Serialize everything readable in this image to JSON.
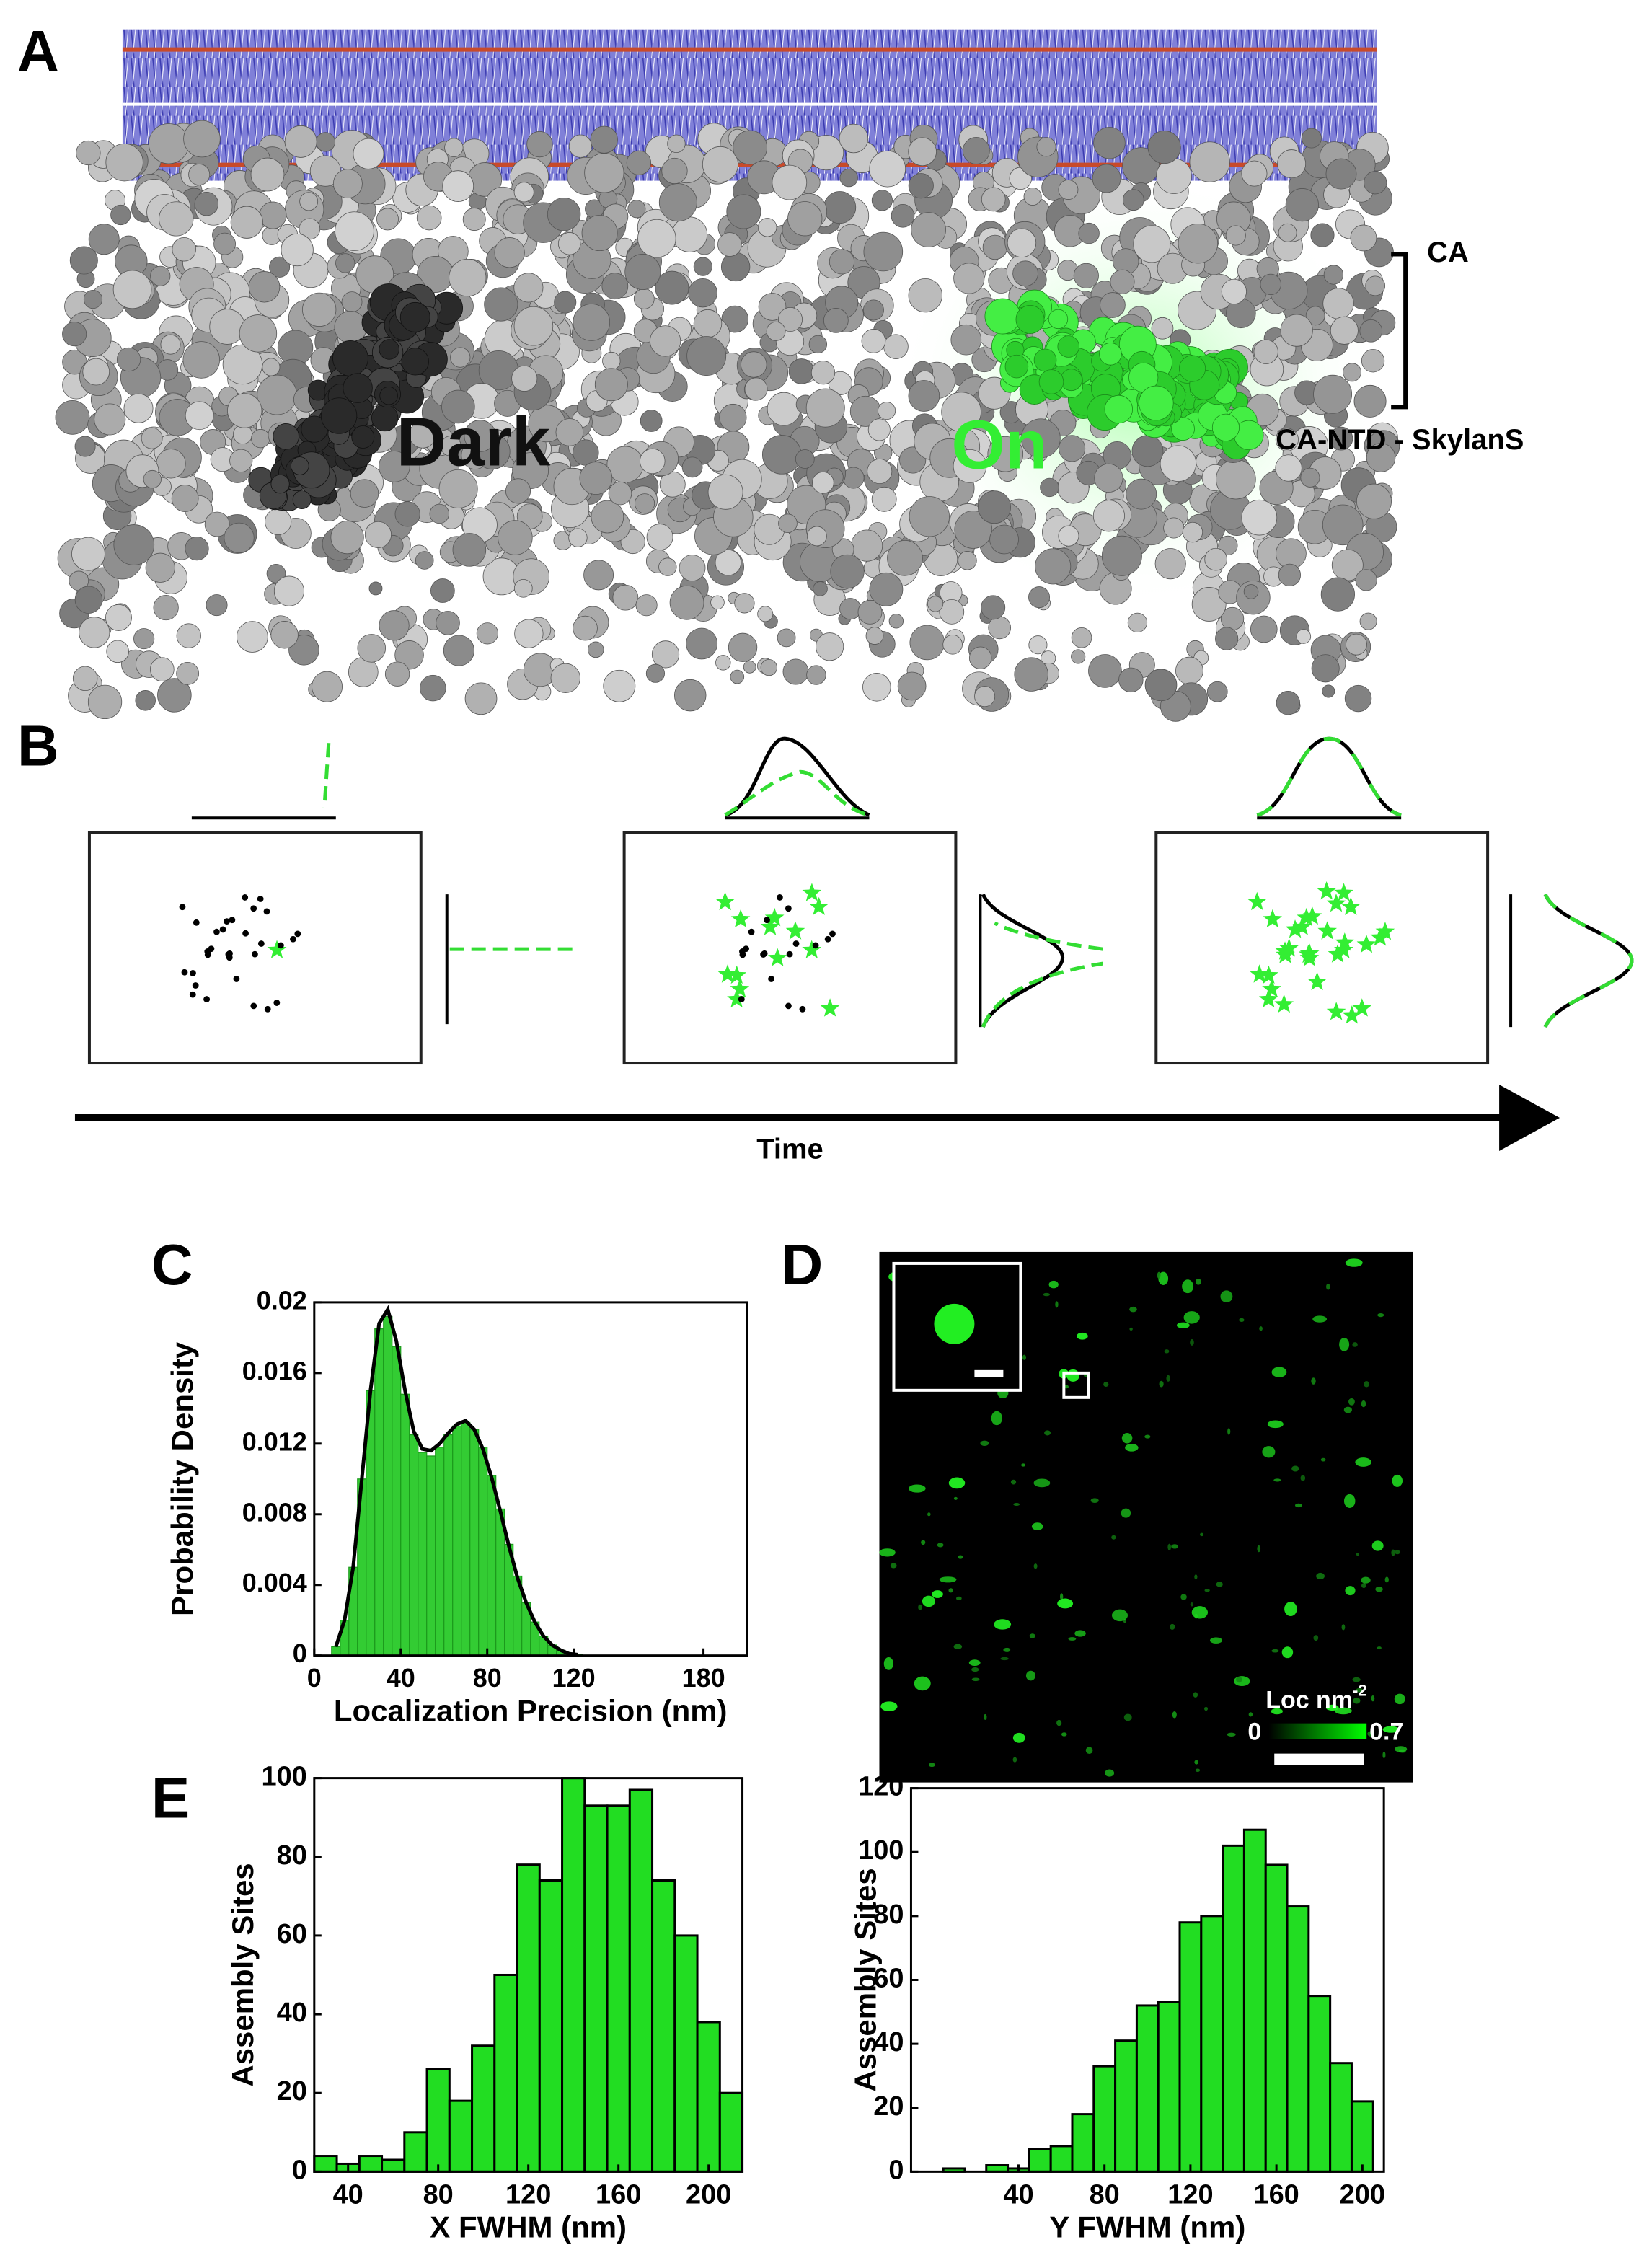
{
  "panels": {
    "labels": [
      "A",
      "B",
      "C",
      "D",
      "E"
    ]
  },
  "panel_a": {
    "dark": "Dark",
    "on": "On",
    "ca": "CA",
    "ca_ntd": "CA-NTD - SkylanS"
  },
  "panel_b": {
    "time": "Time"
  },
  "panel_d": {
    "colorbar_label": "Loc nm",
    "colorbar_exponent": "-2",
    "colorbar_min": "0",
    "colorbar_max": "0.7"
  },
  "chart_data": [
    {
      "type": "histogram",
      "xlabel": "Localization Precision (nm)",
      "ylabel": "Probability Density",
      "color": "#33cc33",
      "bins": [
        8,
        12,
        16,
        20,
        24,
        28,
        32,
        36,
        40,
        44,
        48,
        52,
        56,
        60,
        64,
        68,
        72,
        76,
        80,
        84,
        88,
        92,
        96,
        100,
        104,
        108,
        112,
        116,
        120,
        124
      ],
      "values": [
        0.0005,
        0.002,
        0.005,
        0.01,
        0.015,
        0.0185,
        0.0192,
        0.0175,
        0.0148,
        0.0125,
        0.0115,
        0.0113,
        0.0118,
        0.0125,
        0.013,
        0.0132,
        0.0128,
        0.0118,
        0.0102,
        0.0083,
        0.0063,
        0.0045,
        0.003,
        0.0019,
        0.0011,
        0.0006,
        0.0003,
        0.0001,
        5e-05
      ],
      "fit": {
        "color": "#000000",
        "x": [
          10,
          14,
          18,
          22,
          26,
          30,
          34,
          38,
          42,
          46,
          50,
          54,
          58,
          62,
          66,
          70,
          74,
          78,
          82,
          86,
          90,
          94,
          98,
          102,
          106,
          110,
          114,
          118,
          122
        ],
        "values": [
          0.0005,
          0.002,
          0.005,
          0.01,
          0.015,
          0.0188,
          0.0196,
          0.0178,
          0.015,
          0.0127,
          0.0117,
          0.0116,
          0.012,
          0.0126,
          0.0131,
          0.0133,
          0.0128,
          0.0117,
          0.0101,
          0.0082,
          0.0062,
          0.0044,
          0.003,
          0.0019,
          0.0011,
          0.0006,
          0.0003,
          0.0001,
          5e-05
        ]
      },
      "xlim": [
        0,
        200
      ],
      "xticks": [
        0,
        40,
        80,
        120,
        180
      ],
      "ylim": [
        0,
        0.02
      ],
      "yticks": [
        0,
        0.004,
        0.008,
        0.012,
        0.016,
        0.02
      ]
    },
    {
      "type": "histogram",
      "xlabel": "X FWHM (nm)",
      "ylabel": "Assembly Sites",
      "color": "#22dd22",
      "bins": [
        25,
        35,
        45,
        55,
        65,
        75,
        85,
        95,
        105,
        115,
        125,
        135,
        145,
        155,
        165,
        175,
        185,
        195,
        205,
        215
      ],
      "values": [
        4,
        2,
        4,
        3,
        10,
        26,
        18,
        32,
        50,
        78,
        74,
        100,
        93,
        93,
        97,
        74,
        60,
        38,
        20
      ],
      "xlim": [
        25,
        215
      ],
      "xticks": [
        40,
        80,
        120,
        160,
        200
      ],
      "ylim": [
        0,
        100
      ],
      "yticks": [
        0,
        20,
        40,
        60,
        80,
        100
      ]
    },
    {
      "type": "histogram",
      "xlabel": "Y FWHM (nm)",
      "ylabel": "Assembly Sites",
      "color": "#22dd22",
      "bins": [
        5,
        15,
        25,
        35,
        45,
        55,
        65,
        75,
        85,
        95,
        105,
        115,
        125,
        135,
        145,
        155,
        165,
        175,
        185,
        195,
        205
      ],
      "values": [
        1,
        0,
        2,
        1,
        7,
        8,
        18,
        33,
        41,
        52,
        53,
        78,
        80,
        102,
        107,
        96,
        83,
        55,
        34,
        22
      ],
      "xlim": [
        -10,
        210
      ],
      "xticks": [
        40,
        80,
        120,
        160,
        200
      ],
      "ylim": [
        0,
        120
      ],
      "yticks": [
        0,
        20,
        40,
        60,
        80,
        100,
        120
      ]
    }
  ]
}
